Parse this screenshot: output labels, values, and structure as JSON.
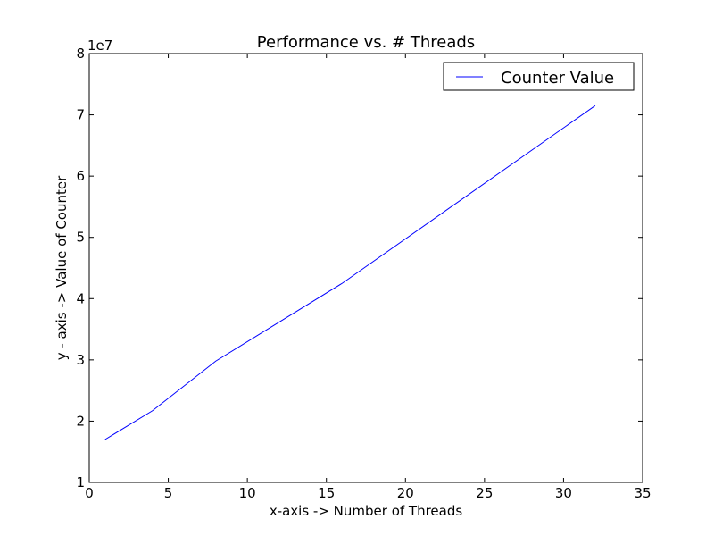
{
  "chart_data": {
    "type": "line",
    "title": "Performance vs. # Threads",
    "xlabel": "x-axis -> Number of Threads",
    "ylabel": "y - axis -> Value of Counter",
    "y_offset_label": "1e7",
    "xlim": [
      0,
      35
    ],
    "ylim": [
      10000000,
      80000000
    ],
    "x_ticks": [
      0,
      5,
      10,
      15,
      20,
      25,
      30,
      35
    ],
    "x_tick_labels": [
      "0",
      "5",
      "10",
      "15",
      "20",
      "25",
      "30",
      "35"
    ],
    "y_ticks": [
      10000000,
      20000000,
      30000000,
      40000000,
      50000000,
      60000000,
      70000000,
      80000000
    ],
    "y_tick_labels": [
      "1",
      "2",
      "3",
      "4",
      "5",
      "6",
      "7",
      "8"
    ],
    "grid": false,
    "legend_position": "top-right",
    "series": [
      {
        "name": "Counter Value",
        "color": "#0000ff",
        "x": [
          1,
          4,
          8,
          16,
          32
        ],
        "y": [
          17000000,
          21700000,
          29800000,
          42500000,
          71500000
        ]
      }
    ]
  }
}
